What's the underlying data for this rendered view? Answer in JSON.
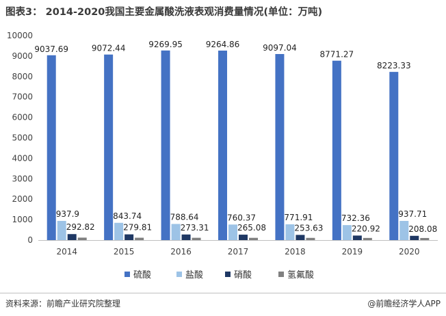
{
  "title": "图表3： 2014-2020我国主要金属酸洗液表观消费量情况(单位：万吨)",
  "source": "资料来源：前瞻产业研究院整理",
  "brand": "@前瞻经济学人APP",
  "chart_data": {
    "type": "bar",
    "title": "图表3： 2014-2020我国主要金属酸洗液表观消费量情况(单位：万吨)",
    "xlabel": "",
    "ylabel": "",
    "categories": [
      "2014",
      "2015",
      "2016",
      "2017",
      "2018",
      "2019",
      "2020"
    ],
    "ylim": [
      0,
      10000
    ],
    "yticks": [
      0,
      1000,
      2000,
      3000,
      4000,
      5000,
      6000,
      7000,
      8000,
      9000,
      10000
    ],
    "grid": false,
    "legend_position": "bottom",
    "series": [
      {
        "name": "硫酸",
        "color": "#4472c4",
        "labeled": true,
        "values": [
          9037.69,
          9072.44,
          9269.95,
          9264.86,
          9097.04,
          8771.27,
          8223.33
        ],
        "labels": [
          "9037.69",
          "9072.44",
          "9269.95",
          "9264.86",
          "9097.04",
          "8771.27",
          "8223.33"
        ]
      },
      {
        "name": "盐酸",
        "color": "#9dc3e6",
        "labeled": true,
        "values": [
          937.9,
          843.74,
          788.64,
          760.37,
          771.91,
          732.36,
          937.71
        ],
        "labels": [
          "937.9",
          "843.74",
          "788.64",
          "760.37",
          "771.91",
          "732.36",
          "937.71"
        ]
      },
      {
        "name": "硝酸",
        "color": "#1f3864",
        "labeled": true,
        "values": [
          292.82,
          279.81,
          273.31,
          265.08,
          253.63,
          220.92,
          208.08
        ],
        "labels": [
          "292.82",
          "279.81",
          "273.31",
          "265.08",
          "253.63",
          "220.92",
          "208.08"
        ]
      },
      {
        "name": "氢氟酸",
        "color": "#808080",
        "labeled": false,
        "values": [
          120,
          115,
          112,
          110,
          108,
          105,
          102
        ],
        "labels": []
      }
    ]
  }
}
